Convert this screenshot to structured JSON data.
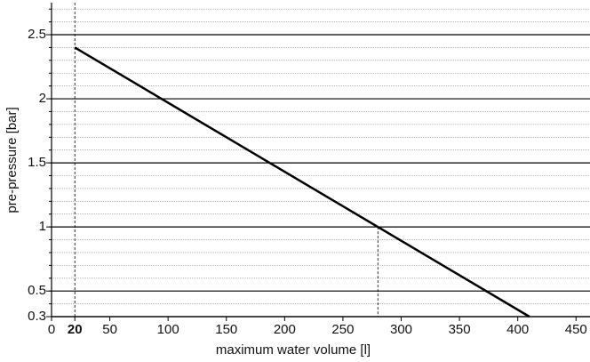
{
  "chart_data": {
    "type": "line",
    "x_label": "maximum water volume [l]",
    "y_label": "pre-pressure [bar]",
    "x": [
      20,
      410
    ],
    "values": [
      2.4,
      0.3
    ],
    "color": "#000000",
    "xlim": [
      0,
      462
    ],
    "ylim": [
      0.3,
      2.75
    ],
    "xticks": [
      0,
      20,
      50,
      100,
      150,
      200,
      250,
      300,
      350,
      400,
      450
    ],
    "yticks": [
      0.3,
      0.5,
      1,
      1.5,
      2,
      2.5
    ],
    "bold_xtick": 20,
    "grid": true,
    "minor_grid_step": 0.1,
    "drop_lines": [
      {
        "x": 20,
        "y": 2.75
      },
      {
        "x": 280,
        "y": 1
      }
    ]
  }
}
